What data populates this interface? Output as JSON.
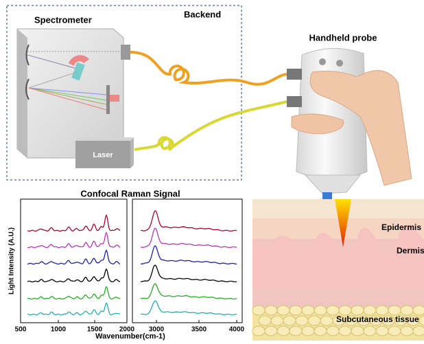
{
  "labels": {
    "spectrometer": "Spectrometer",
    "backend": "Backend",
    "laser": "Laser",
    "handheld_probe": "Handheld probe"
  },
  "raman": {
    "title": "Confocal Raman Signal",
    "y_label": "Light Intensity (A.U.)",
    "x_label": "Wavenumber(cm-1)",
    "left_ticks": [
      "500",
      "1000",
      "1500",
      "2000"
    ],
    "right_ticks": [
      "3000",
      "3500",
      "4000"
    ]
  },
  "skin": {
    "layers": [
      "Epidermis",
      "Dermis",
      "Subcutaneous tissue"
    ]
  }
}
